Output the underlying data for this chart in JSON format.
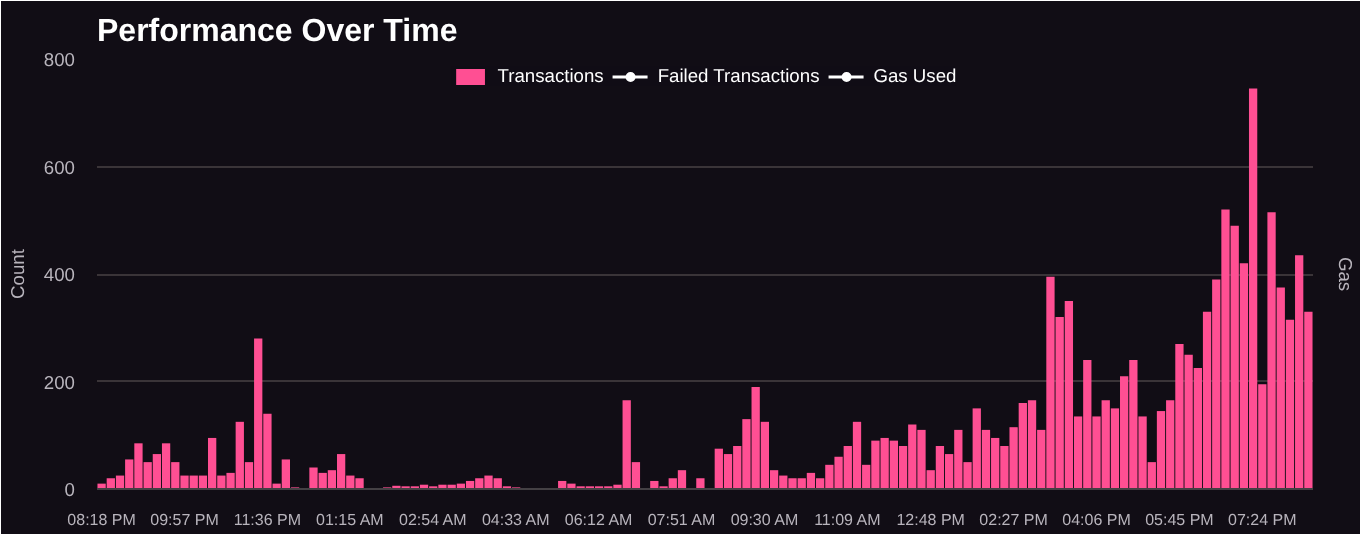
{
  "chart_data": {
    "type": "bar",
    "title": "Performance Over Time",
    "ylabel": "Count",
    "y2label": "Gas",
    "categories": [
      "08:18 PM",
      null,
      null,
      null,
      null,
      null,
      null,
      null,
      null,
      "09:57 PM",
      null,
      null,
      null,
      null,
      null,
      null,
      null,
      null,
      "11:36 PM",
      null,
      null,
      null,
      null,
      null,
      null,
      null,
      null,
      "01:15 AM",
      null,
      null,
      null,
      null,
      null,
      null,
      null,
      null,
      "02:54 AM",
      null,
      null,
      null,
      null,
      null,
      null,
      null,
      null,
      "04:33 AM",
      null,
      null,
      null,
      null,
      null,
      null,
      null,
      null,
      "06:12 AM",
      null,
      null,
      null,
      null,
      null,
      null,
      null,
      null,
      "07:51 AM",
      null,
      null,
      null,
      null,
      null,
      null,
      null,
      null,
      "09:30 AM",
      null,
      null,
      null,
      null,
      null,
      null,
      null,
      null,
      "11:09 AM",
      null,
      null,
      null,
      null,
      null,
      null,
      null,
      null,
      "12:48 PM",
      null,
      null,
      null,
      null,
      null,
      null,
      null,
      null,
      "02:27 PM",
      null,
      null,
      null,
      null,
      null,
      null,
      null,
      null,
      "04:06 PM",
      null,
      null,
      null,
      null,
      null,
      null,
      null,
      null,
      "05:45 PM",
      null,
      null,
      null,
      null,
      null,
      null,
      null,
      null,
      "07:24 PM",
      null,
      null,
      null,
      null,
      null
    ],
    "series": [
      {
        "name": "Transactions",
        "color": "#ff4f93",
        "values": [
          10,
          20,
          25,
          55,
          85,
          50,
          65,
          85,
          50,
          25,
          25,
          25,
          95,
          25,
          30,
          125,
          50,
          280,
          140,
          10,
          55,
          3,
          null,
          40,
          30,
          35,
          65,
          25,
          20,
          0,
          0,
          3,
          6,
          5,
          5,
          8,
          5,
          8,
          8,
          10,
          15,
          20,
          25,
          20,
          5,
          3,
          0,
          0,
          0,
          0,
          15,
          10,
          5,
          5,
          5,
          5,
          8,
          165,
          50,
          0,
          15,
          5,
          20,
          35,
          0,
          20,
          0,
          75,
          65,
          80,
          130,
          190,
          125,
          35,
          25,
          20,
          20,
          30,
          20,
          45,
          60,
          80,
          125,
          45,
          90,
          95,
          90,
          80,
          120,
          110,
          35,
          80,
          65,
          110,
          50,
          150,
          110,
          95,
          80,
          115,
          160,
          165,
          110,
          395,
          320,
          350,
          135,
          240,
          135,
          165,
          150,
          210,
          240,
          135,
          50,
          145,
          165,
          270,
          250,
          225,
          330,
          390,
          520,
          490,
          420,
          745,
          195,
          515,
          375,
          315,
          435,
          330
        ]
      },
      {
        "name": "Failed Transactions",
        "type": "line",
        "color": "#ffffff",
        "values": [
          null,
          null,
          null,
          null,
          null,
          null,
          null,
          null,
          null,
          null,
          null,
          null,
          null,
          null,
          null,
          null,
          null,
          null,
          null,
          null,
          null,
          null,
          null,
          null,
          null,
          null,
          null,
          null,
          null,
          null,
          null,
          null,
          null,
          null,
          null,
          null,
          null,
          null,
          null,
          null,
          null,
          null,
          null,
          null,
          null,
          null,
          null,
          null,
          null,
          null,
          null,
          null,
          null,
          null,
          null,
          null,
          null,
          null,
          null,
          null,
          null,
          null,
          null,
          null,
          null,
          null,
          null,
          null,
          null,
          null,
          null,
          null,
          null,
          null,
          null,
          null,
          null,
          null,
          null,
          null,
          null,
          null,
          null,
          null,
          null,
          null,
          null,
          null,
          null,
          null,
          null,
          null,
          null,
          null,
          null,
          null,
          null,
          null,
          null,
          null,
          null,
          null,
          null,
          null,
          null,
          null,
          null,
          null,
          null,
          null,
          null,
          null,
          null,
          null,
          null,
          null,
          null,
          null,
          null,
          null,
          null,
          null,
          null,
          null,
          null,
          null,
          null,
          null,
          null,
          null,
          null,
          null
        ]
      },
      {
        "name": "Gas Used",
        "type": "line",
        "color": "#ffffff",
        "values": [
          null,
          null,
          null,
          null,
          null,
          null,
          null,
          null,
          null,
          null,
          null,
          null,
          null,
          null,
          null,
          null,
          null,
          null,
          null,
          null,
          null,
          null,
          null,
          null,
          null,
          null,
          null,
          null,
          null,
          null,
          null,
          null,
          null,
          null,
          null,
          null,
          null,
          null,
          null,
          null,
          null,
          null,
          null,
          null,
          null,
          null,
          null,
          null,
          null,
          null,
          null,
          null,
          null,
          null,
          null,
          null,
          null,
          null,
          null,
          null,
          null,
          null,
          null,
          null,
          null,
          null,
          null,
          null,
          null,
          null,
          null,
          null,
          null,
          null,
          null,
          null,
          null,
          null,
          null,
          null,
          null,
          null,
          null,
          null,
          null,
          null,
          null,
          null,
          null,
          null,
          null,
          null,
          null,
          null,
          null,
          null,
          null,
          null,
          null,
          null,
          null,
          null,
          null,
          null,
          null,
          null,
          null,
          null,
          null,
          null,
          null,
          null,
          null,
          null,
          null,
          null,
          null,
          null,
          null,
          null,
          null,
          null,
          null,
          null,
          null,
          null,
          null,
          null,
          null,
          null,
          null,
          null
        ]
      }
    ],
    "ylim": [
      0,
      800
    ],
    "yticks": [
      0,
      200,
      400,
      600,
      800
    ],
    "grid": "y",
    "legend": "top",
    "marker": "circle"
  }
}
